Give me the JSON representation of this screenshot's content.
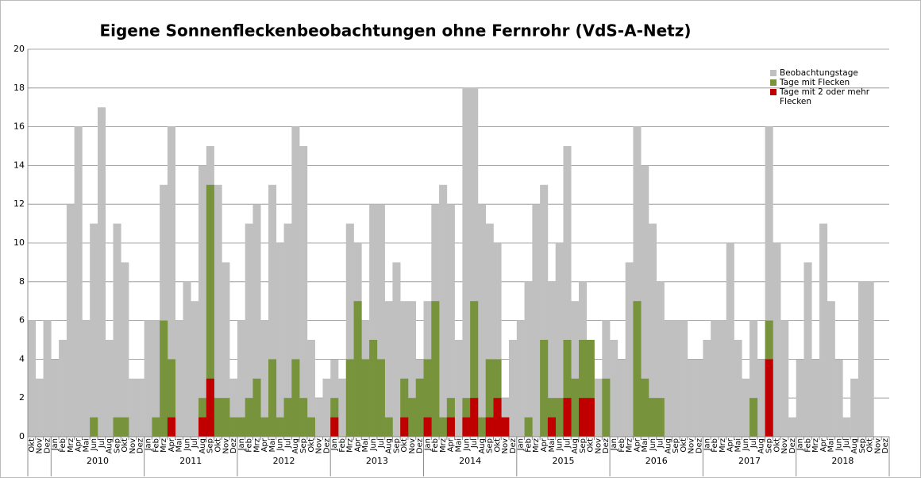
{
  "chart_data": {
    "type": "bar",
    "title": "Eigene Sonnenfleckenbeobachtungen ohne Fernrohr (VdS-A-Netz)",
    "categories": [
      "Okt",
      "Nov",
      "Dez",
      "Jan",
      "Feb",
      "Mrz",
      "Apr",
      "Mai",
      "Jun",
      "Jul",
      "Aug",
      "Sep",
      "Okt",
      "Nov",
      "Dez",
      "Jan",
      "Feb",
      "Mrz",
      "Apr",
      "Mai",
      "Jun",
      "Jul",
      "Aug",
      "Sep",
      "Okt",
      "Nov",
      "Dez",
      "Jan",
      "Feb",
      "Mrz",
      "Apr",
      "Mai",
      "Jun",
      "Jul",
      "Aug",
      "Sep",
      "Okt",
      "Nov",
      "Dez",
      "Jan",
      "Feb",
      "Mrz",
      "Apr",
      "Mai",
      "Jun",
      "Jul",
      "Aug",
      "Sep",
      "Okt",
      "Nov",
      "Dez",
      "Jan",
      "Feb",
      "Mrz",
      "Apr",
      "Mai",
      "Jun",
      "Jul",
      "Aug",
      "Sep",
      "Okt",
      "Nov",
      "Dez",
      "Jan",
      "Feb",
      "Mrz",
      "Apr",
      "Mai",
      "Jun",
      "Jul",
      "Aug",
      "Sep",
      "Okt",
      "Nov",
      "Dez",
      "Jan",
      "Feb",
      "Mrz",
      "Apr",
      "Mai",
      "Jun",
      "Jul",
      "Aug",
      "Sep",
      "Okt",
      "Nov",
      "Dez",
      "Jan",
      "Feb",
      "Mrz",
      "Apr",
      "Mai",
      "Jun",
      "Jul",
      "Aug",
      "Sep",
      "Okt",
      "Nov",
      "Dez",
      "Jan",
      "Feb",
      "Mrz",
      "Apr",
      "Mai",
      "Jun",
      "Jul",
      "Aug",
      "Sep",
      "Okt",
      "Nov",
      "Dez"
    ],
    "years": [
      "2010",
      "2011",
      "2012",
      "2013",
      "2014",
      "2015",
      "2016",
      "2017",
      "2018"
    ],
    "series": [
      {
        "name": "Beobachtungstage",
        "color": "#c0c0c0",
        "values": [
          6,
          3,
          6,
          4,
          5,
          12,
          16,
          6,
          11,
          17,
          5,
          11,
          9,
          3,
          3,
          6,
          6,
          13,
          16,
          6,
          8,
          7,
          14,
          15,
          13,
          9,
          3,
          6,
          11,
          12,
          6,
          13,
          10,
          11,
          16,
          15,
          5,
          2,
          3,
          4,
          3,
          11,
          10,
          6,
          12,
          12,
          7,
          9,
          7,
          7,
          4,
          7,
          12,
          13,
          12,
          5,
          18,
          18,
          12,
          11,
          10,
          2,
          5,
          6,
          8,
          12,
          13,
          8,
          10,
          15,
          7,
          8,
          4,
          3,
          6,
          5,
          4,
          9,
          16,
          14,
          11,
          8,
          6,
          6,
          6,
          4,
          4,
          5,
          6,
          6,
          10,
          5,
          3,
          6,
          4,
          16,
          10,
          6,
          1,
          4,
          9,
          4,
          11,
          7,
          4,
          1,
          3,
          8,
          8,
          null,
          null
        ]
      },
      {
        "name": "Tage mit Flecken",
        "color": "#77933c",
        "values": [
          0,
          0,
          0,
          0,
          0,
          0,
          0,
          0,
          1,
          0,
          0,
          1,
          1,
          0,
          0,
          0,
          1,
          6,
          4,
          0,
          0,
          0,
          2,
          13,
          2,
          2,
          1,
          1,
          2,
          3,
          1,
          4,
          1,
          2,
          4,
          2,
          1,
          0,
          0,
          2,
          0,
          4,
          7,
          4,
          5,
          4,
          1,
          0,
          3,
          2,
          3,
          4,
          7,
          1,
          2,
          0,
          2,
          7,
          1,
          4,
          4,
          1,
          0,
          0,
          1,
          0,
          5,
          2,
          2,
          5,
          3,
          5,
          5,
          0,
          3,
          0,
          0,
          0,
          7,
          3,
          2,
          2,
          0,
          0,
          0,
          0,
          0,
          0,
          0,
          0,
          0,
          0,
          0,
          2,
          0,
          6,
          0,
          0,
          0,
          0,
          0,
          0,
          0,
          0,
          0,
          0,
          0,
          0,
          0,
          null,
          null
        ]
      },
      {
        "name": "Tage mit 2 oder mehr Flecken",
        "color": "#c00000",
        "values": [
          0,
          0,
          0,
          0,
          0,
          0,
          0,
          0,
          0,
          0,
          0,
          0,
          0,
          0,
          0,
          0,
          0,
          0,
          1,
          0,
          0,
          0,
          1,
          3,
          0,
          0,
          0,
          0,
          0,
          0,
          0,
          0,
          0,
          0,
          0,
          0,
          0,
          0,
          0,
          1,
          0,
          0,
          0,
          0,
          0,
          0,
          0,
          0,
          1,
          0,
          0,
          1,
          0,
          0,
          1,
          0,
          1,
          2,
          0,
          1,
          2,
          1,
          0,
          0,
          0,
          0,
          0,
          1,
          0,
          2,
          0,
          2,
          2,
          0,
          0,
          0,
          0,
          0,
          0,
          0,
          0,
          0,
          0,
          0,
          0,
          0,
          0,
          0,
          0,
          0,
          0,
          0,
          0,
          0,
          0,
          4,
          0,
          0,
          0,
          0,
          0,
          0,
          0,
          0,
          0,
          0,
          0,
          0,
          0,
          null,
          null
        ]
      }
    ],
    "ylim": [
      0,
      20
    ],
    "yticks": [
      0,
      2,
      4,
      6,
      8,
      10,
      12,
      14,
      16,
      18,
      20
    ],
    "grid": true
  }
}
